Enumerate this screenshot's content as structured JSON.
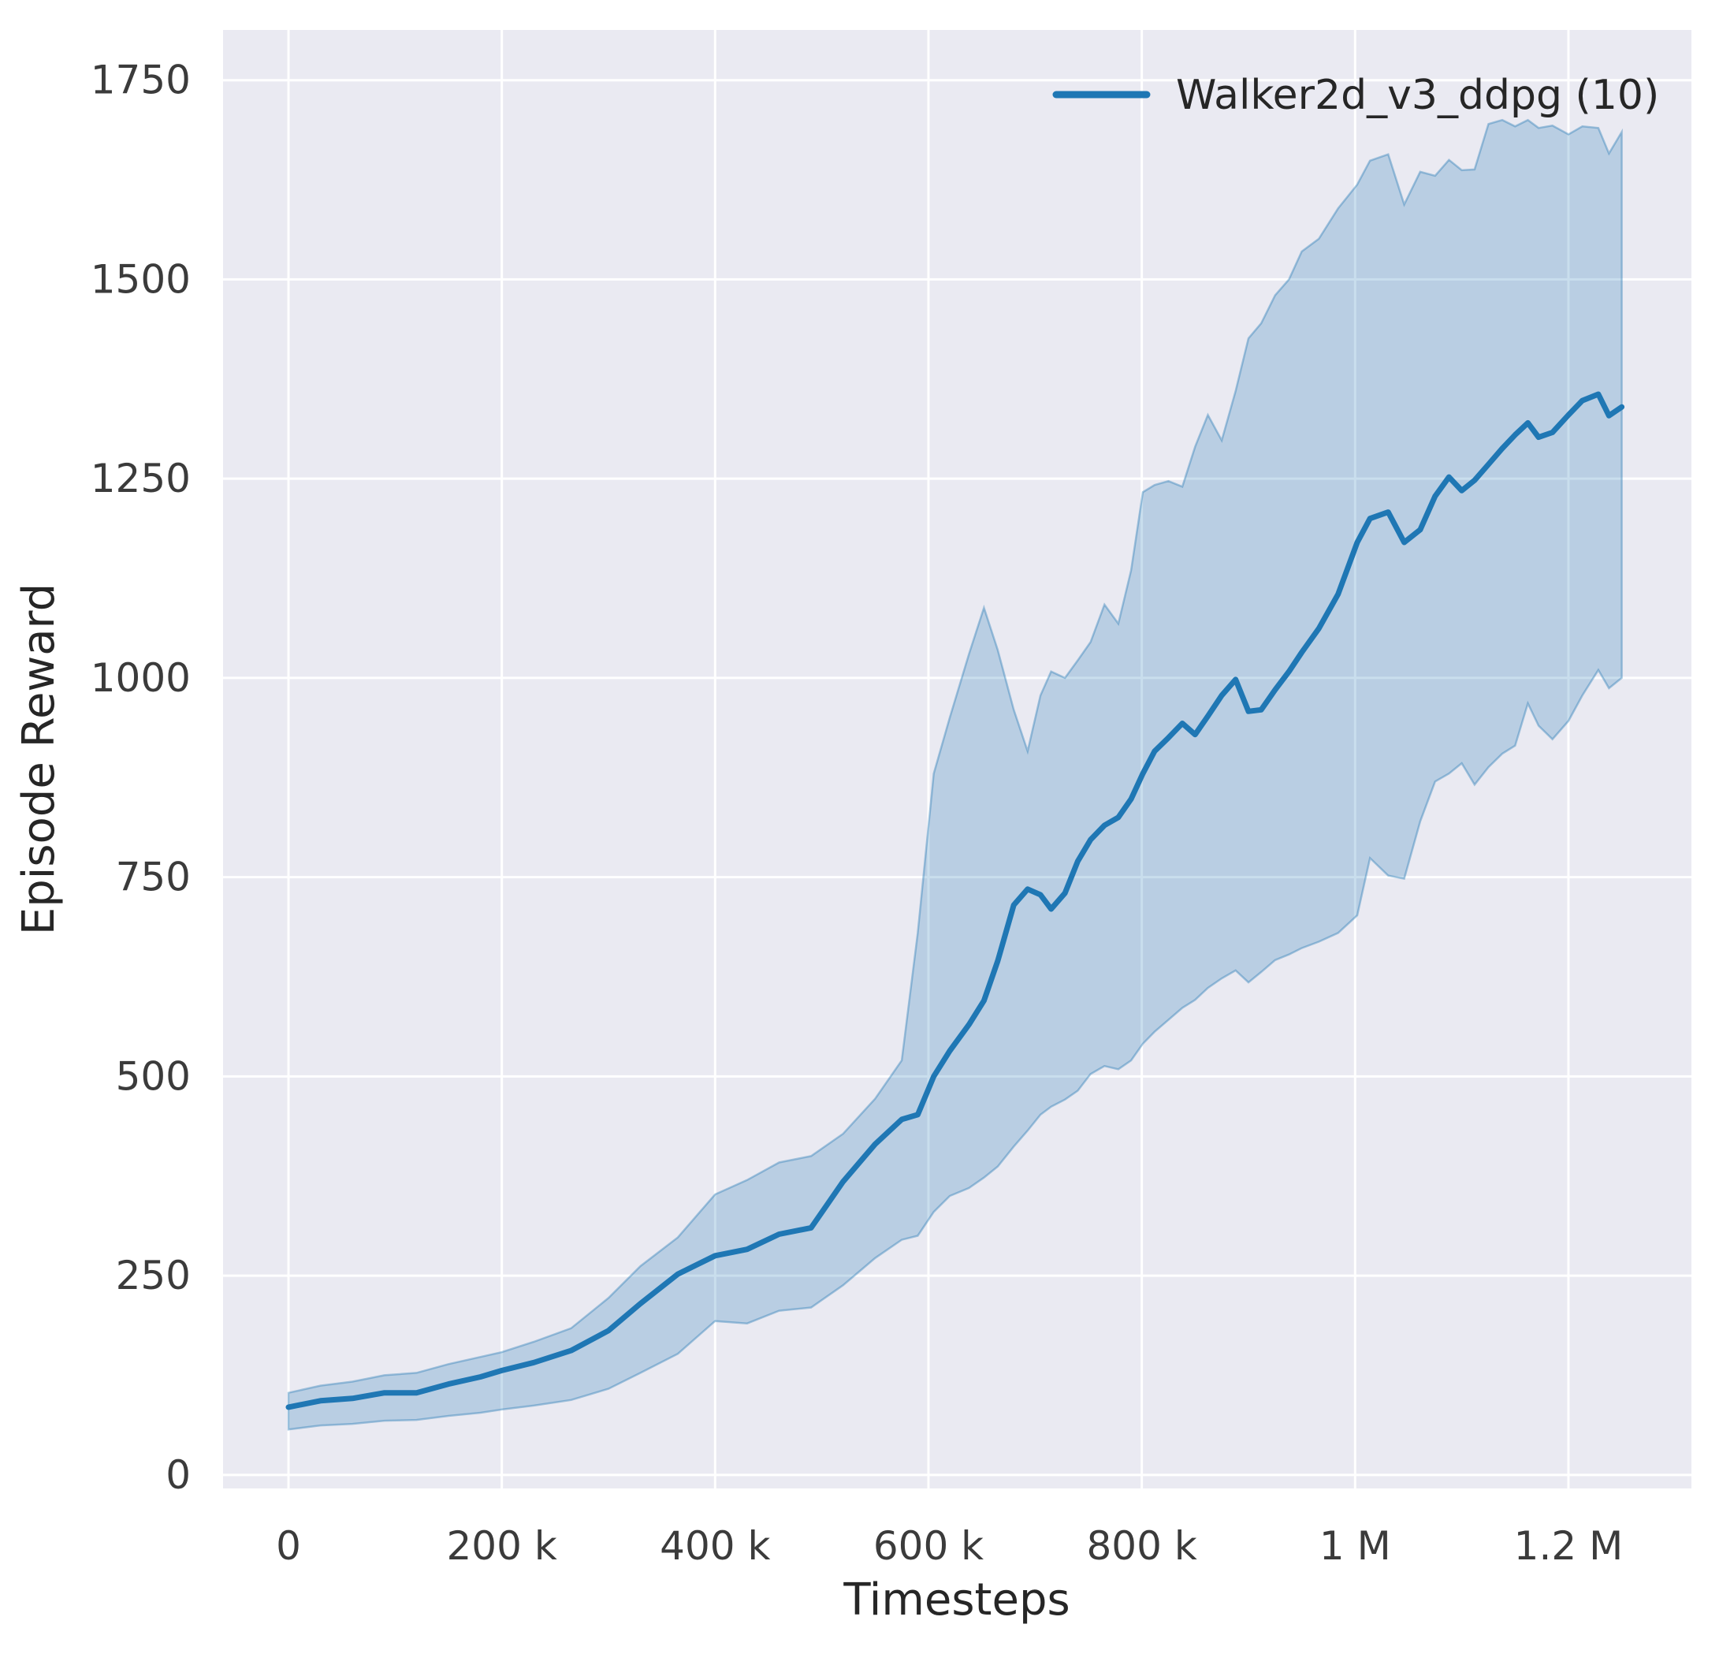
{
  "style": {
    "figure_bg": "#ffffff",
    "plot_bg": "#eaeaf2",
    "grid_color": "#ffffff",
    "text_color": "#262626",
    "tick_color": "#3b3b3b",
    "line_color": "#1f77b4",
    "band_color": "#1f77b4",
    "band_opacity": 0.24
  },
  "chart_data": {
    "type": "line",
    "title": "",
    "xlabel": "Timesteps",
    "ylabel": "Episode Reward",
    "grid": true,
    "xlim": [
      -61330,
      1315300
    ],
    "ylim": [
      -17,
      1813
    ],
    "xticks": {
      "values": [
        0,
        200000,
        400000,
        600000,
        800000,
        1000000,
        1200000
      ],
      "labels": [
        "0",
        "200 k",
        "400 k",
        "600 k",
        "800 k",
        "1 M",
        "1.2 M"
      ]
    },
    "yticks": {
      "values": [
        0,
        250,
        500,
        750,
        1000,
        1250,
        1500,
        1750
      ],
      "labels": [
        "0",
        "250",
        "500",
        "750",
        "1000",
        "1250",
        "1500",
        "1750"
      ]
    },
    "legend": {
      "position": "upper right",
      "entries": [
        {
          "label": "Walker2d_v3_ddpg (10)",
          "color": "#1f77b4"
        }
      ]
    },
    "series": [
      {
        "name": "Walker2d_v3_ddpg (10)",
        "color": "#1f77b4",
        "band_opacity": 0.24,
        "x": [
          0,
          30000,
          60000,
          90000,
          120000,
          150000,
          180000,
          200000,
          230000,
          265000,
          300000,
          330000,
          365000,
          400000,
          430000,
          460000,
          490000,
          520000,
          550000,
          575000,
          590000,
          605000,
          620000,
          638000,
          652000,
          665000,
          680000,
          693000,
          705000,
          715000,
          728000,
          740000,
          752000,
          765000,
          778000,
          790000,
          801000,
          812000,
          825000,
          838000,
          850000,
          862000,
          875000,
          888000,
          900000,
          912000,
          925000,
          938000,
          950000,
          966000,
          984000,
          1002000,
          1014000,
          1031000,
          1046000,
          1061000,
          1075000,
          1088000,
          1100000,
          1112000,
          1125000,
          1138000,
          1150000,
          1162000,
          1172000,
          1185000,
          1200000,
          1213000,
          1228000,
          1238000,
          1250000
        ],
        "mean": [
          85,
          93,
          96,
          103,
          103,
          114,
          123,
          131,
          141,
          156,
          181,
          215,
          252,
          275,
          283,
          302,
          310,
          368,
          415,
          446,
          452,
          500,
          532,
          565,
          595,
          645,
          715,
          735,
          728,
          710,
          730,
          770,
          797,
          815,
          825,
          848,
          880,
          908,
          925,
          943,
          929,
          952,
          978,
          998,
          958,
          960,
          985,
          1008,
          1032,
          1062,
          1105,
          1170,
          1200,
          1208,
          1170,
          1186,
          1228,
          1252,
          1235,
          1248,
          1268,
          1288,
          1305,
          1320,
          1302,
          1308,
          1330,
          1348,
          1356,
          1329,
          1340
        ],
        "band_lower": [
          57,
          62,
          64,
          68,
          69,
          74,
          78,
          82,
          87,
          94,
          108,
          128,
          152,
          193,
          190,
          206,
          210,
          238,
          272,
          295,
          300,
          330,
          350,
          360,
          373,
          387,
          412,
          432,
          452,
          462,
          471,
          482,
          503,
          513,
          509,
          520,
          541,
          556,
          571,
          586,
          596,
          611,
          623,
          633,
          618,
          631,
          646,
          653,
          661,
          669,
          680,
          702,
          774,
          752,
          748,
          820,
          870,
          880,
          893,
          866,
          888,
          905,
          915,
          968,
          940,
          923,
          946,
          978,
          1010,
          987,
          1000
        ],
        "band_upper": [
          103,
          112,
          117,
          125,
          128,
          139,
          148,
          154,
          167,
          184,
          222,
          262,
          298,
          352,
          370,
          392,
          400,
          428,
          472,
          520,
          680,
          880,
          950,
          1030,
          1088,
          1035,
          960,
          908,
          978,
          1008,
          1000,
          1022,
          1045,
          1092,
          1068,
          1135,
          1233,
          1242,
          1247,
          1240,
          1290,
          1330,
          1298,
          1360,
          1426,
          1445,
          1480,
          1500,
          1535,
          1551,
          1589,
          1619,
          1649,
          1657,
          1594,
          1635,
          1630,
          1650,
          1637,
          1638,
          1695,
          1700,
          1692,
          1700,
          1690,
          1693,
          1682,
          1692,
          1690,
          1658,
          1685
        ]
      }
    ]
  }
}
